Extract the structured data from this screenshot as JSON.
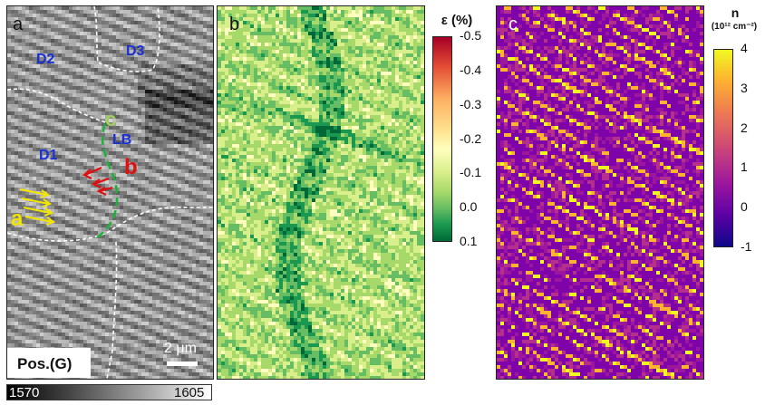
{
  "panels": {
    "a": {
      "label": "a",
      "domains": [
        "D1",
        "D2",
        "D3"
      ],
      "boundary_label": "LB",
      "arrow_labels": [
        "a",
        "b",
        "c"
      ],
      "scalebar_label": "2 μm",
      "map_title": "Pos.(G)",
      "colorbar": {
        "min_label": "1570",
        "max_label": "1605"
      }
    },
    "b": {
      "label": "b",
      "colorbar": {
        "title": "ε (%)",
        "ticks": [
          "-0.5",
          "-0.4",
          "-0.3",
          "-0.2",
          "-0.1",
          "0.0",
          "0.1"
        ]
      }
    },
    "c": {
      "label": "c",
      "colorbar": {
        "title": "n",
        "subtitle": "(10¹² cm⁻²)",
        "ticks": [
          "4",
          "3",
          "2",
          "1",
          "0",
          "-1"
        ]
      }
    }
  },
  "colors": {
    "domain_label": "#1a2fd6",
    "arrow_a": "#f2e600",
    "arrow_b": "#e01010",
    "boundary_green": "#1db33a"
  }
}
